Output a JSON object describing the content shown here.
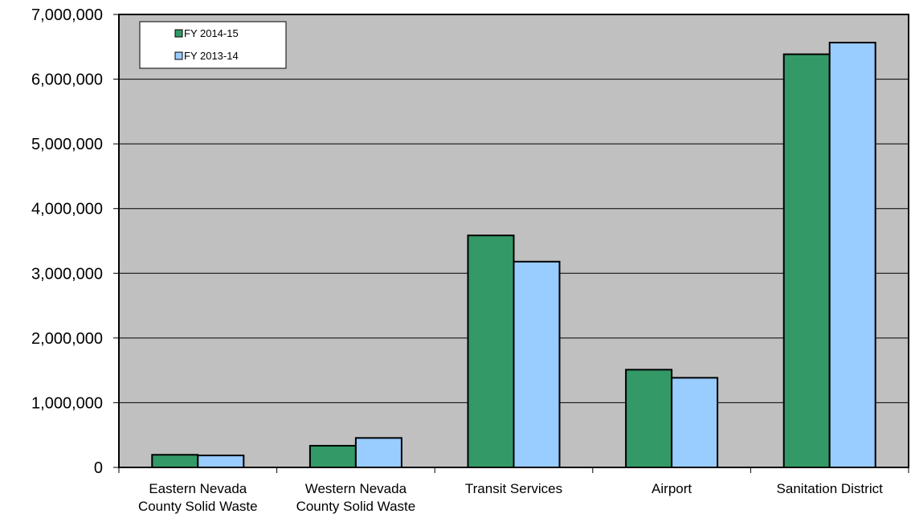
{
  "chart_data": {
    "type": "bar",
    "categories": [
      [
        "Eastern Nevada",
        "County Solid Waste"
      ],
      [
        "Western Nevada",
        "County Solid Waste"
      ],
      [
        "Transit Services"
      ],
      [
        "Airport"
      ],
      [
        "Sanitation District"
      ]
    ],
    "series": [
      {
        "name": "FY 2014-15",
        "color": "#339966",
        "values": [
          195000,
          335000,
          3585000,
          1510000,
          6385000
        ]
      },
      {
        "name": "FY 2013-14",
        "color": "#99ccff",
        "values": [
          185000,
          455000,
          3180000,
          1385000,
          6565000
        ]
      }
    ],
    "ylim": [
      0,
      7000000
    ],
    "yticks": [
      0,
      1000000,
      2000000,
      3000000,
      4000000,
      5000000,
      6000000,
      7000000
    ],
    "ytick_labels": [
      "0",
      "1,000,000",
      "2,000,000",
      "3,000,000",
      "4,000,000",
      "5,000,000",
      "6,000,000",
      "7,000,000"
    ],
    "grid": true,
    "legend_position": "top-left",
    "plot_background": "#c0c0c0",
    "title": "",
    "xlabel": "",
    "ylabel": ""
  }
}
